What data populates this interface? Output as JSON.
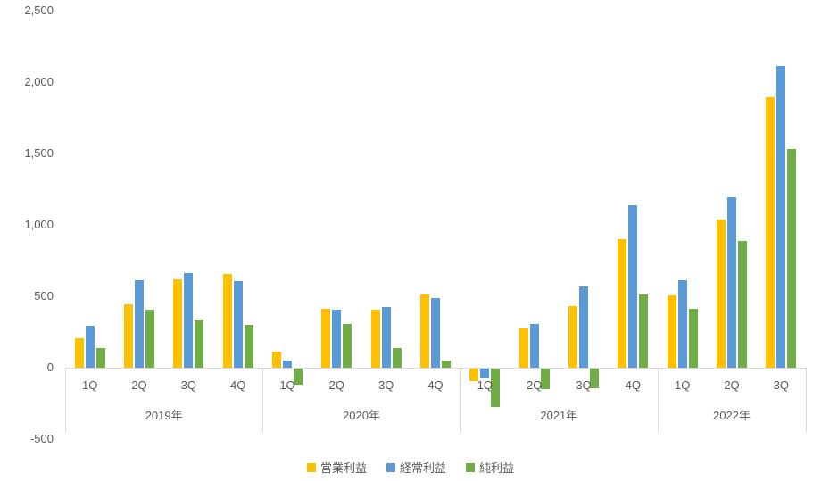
{
  "chart_data": {
    "type": "bar",
    "title": "",
    "xlabel": "",
    "ylabel": "",
    "grid": false,
    "legend_position": "bottom-center",
    "y_axis": {
      "min": -500,
      "max": 2500,
      "step": 500,
      "tick_labels": [
        "2,500",
        "2,000",
        "1,500",
        "1,000",
        "500",
        "0",
        "-500"
      ],
      "tick_values": [
        2500,
        2000,
        1500,
        1000,
        500,
        0,
        -500
      ]
    },
    "groups": [
      {
        "label": "2019年",
        "quarters": [
          "1Q",
          "2Q",
          "3Q",
          "4Q"
        ]
      },
      {
        "label": "2020年",
        "quarters": [
          "1Q",
          "2Q",
          "3Q",
          "4Q"
        ]
      },
      {
        "label": "2021年",
        "quarters": [
          "1Q",
          "2Q",
          "3Q",
          "4Q"
        ]
      },
      {
        "label": "2022年",
        "quarters": [
          "1Q",
          "2Q",
          "3Q"
        ]
      }
    ],
    "categories": [
      "2019年 1Q",
      "2019年 2Q",
      "2019年 3Q",
      "2019年 4Q",
      "2020年 1Q",
      "2020年 2Q",
      "2020年 3Q",
      "2020年 4Q",
      "2021年 1Q",
      "2021年 2Q",
      "2021年 3Q",
      "2021年 4Q",
      "2022年 1Q",
      "2022年 2Q",
      "2022年 3Q"
    ],
    "series": [
      {
        "name": "営業利益",
        "color": "#FFC000",
        "values": [
          205,
          445,
          620,
          655,
          110,
          415,
          405,
          510,
          -90,
          275,
          430,
          900,
          505,
          1040,
          1895
        ]
      },
      {
        "name": "経常利益",
        "color": "#5B9BD5",
        "values": [
          295,
          610,
          660,
          605,
          50,
          405,
          425,
          490,
          -70,
          305,
          570,
          1135,
          610,
          1195,
          2110
        ]
      },
      {
        "name": "純利益",
        "color": "#70AD47",
        "values": [
          135,
          405,
          330,
          300,
          -110,
          305,
          140,
          50,
          -270,
          -145,
          -140,
          515,
          410,
          890,
          1530
        ]
      }
    ]
  },
  "colors": {
    "text": "#595959",
    "axis_line": "#d9d9d9",
    "background": "#ffffff"
  }
}
